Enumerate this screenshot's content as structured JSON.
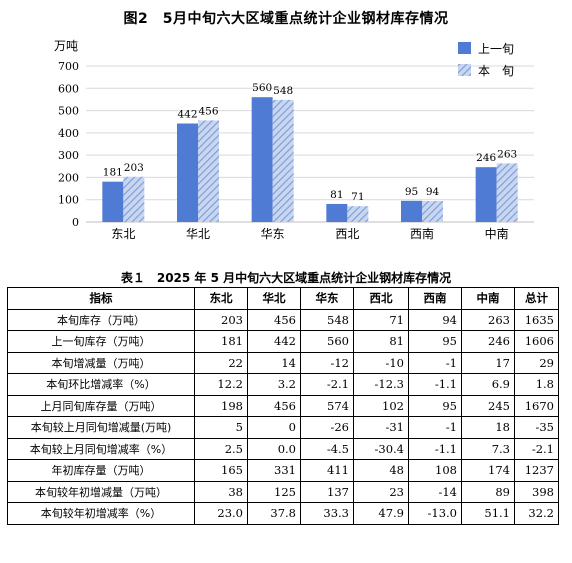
{
  "chart_title": "图2　5月中旬六大区域重点统计企业钢材库存情况",
  "chart_data": {
    "type": "bar",
    "title": "图2　5月中旬六大区域重点统计企业钢材库存情况",
    "ylabel": "万吨",
    "ylim": [
      0,
      700
    ],
    "yticks": [
      0,
      100,
      200,
      300,
      400,
      500,
      600,
      700
    ],
    "categories": [
      "东北",
      "华北",
      "华东",
      "西北",
      "西南",
      "中南"
    ],
    "series": [
      {
        "name": "上一旬",
        "values": [
          181,
          442,
          560,
          81,
          95,
          246
        ],
        "color": "#4f7bd4",
        "pattern": "solid"
      },
      {
        "name": "本　旬",
        "values": [
          203,
          456,
          548,
          71,
          94,
          263
        ],
        "color": "#a9bfe6",
        "pattern": "diagonal-hatch"
      }
    ],
    "grid": true,
    "legend": "top-right"
  },
  "table": {
    "title": "表１　2025 年 5 月中旬六大区域重点统计企业钢材库存情况",
    "headers": [
      "指标",
      "东北",
      "华北",
      "华东",
      "西北",
      "西南",
      "中南",
      "总计"
    ],
    "rows": [
      [
        "本旬库存（万吨）",
        "203",
        "456",
        "548",
        "71",
        "94",
        "263",
        "1635"
      ],
      [
        "上一旬库存（万吨）",
        "181",
        "442",
        "560",
        "81",
        "95",
        "246",
        "1606"
      ],
      [
        "本旬增减量（万吨）",
        "22",
        "14",
        "-12",
        "-10",
        "-1",
        "17",
        "29"
      ],
      [
        "本旬环比增减率（%）",
        "12.2",
        "3.2",
        "-2.1",
        "-12.3",
        "-1.1",
        "6.9",
        "1.8"
      ],
      [
        "上月同旬库存量（万吨）",
        "198",
        "456",
        "574",
        "102",
        "95",
        "245",
        "1670"
      ],
      [
        "本旬较上月同旬增减量(万吨)",
        "5",
        "0",
        "-26",
        "-31",
        "-1",
        "18",
        "-35"
      ],
      [
        "本旬较上月同旬增减率（%）",
        "2.5",
        "0.0",
        "-4.5",
        "-30.4",
        "-1.1",
        "7.3",
        "-2.1"
      ],
      [
        "年初库存量（万吨）",
        "165",
        "331",
        "411",
        "48",
        "108",
        "174",
        "1237"
      ],
      [
        "本旬较年初增减量（万吨）",
        "38",
        "125",
        "137",
        "23",
        "-14",
        "89",
        "398"
      ],
      [
        "本旬较年初增减率（%）",
        "23.0",
        "37.8",
        "33.3",
        "47.9",
        "-13.0",
        "51.1",
        "32.2"
      ]
    ]
  }
}
